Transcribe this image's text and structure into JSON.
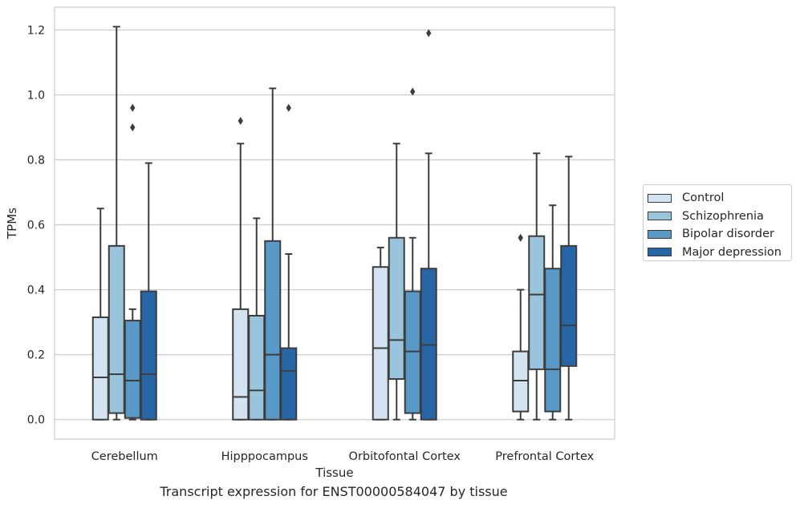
{
  "caption": "Transcript expression for ENST00000584047 by tissue",
  "chart_data": {
    "type": "boxplot",
    "xlabel": "Tissue",
    "ylabel": "TPMs",
    "ylim": [
      -0.06,
      1.27
    ],
    "yticks": [
      0.0,
      0.2,
      0.4,
      0.6,
      0.8,
      1.0,
      1.2
    ],
    "ytick_labels": [
      "0.0",
      "0.2",
      "0.4",
      "0.6",
      "0.8",
      "1.0",
      "1.2"
    ],
    "grid": true,
    "legend_position": "right",
    "categories": [
      "Cerebellum",
      "Hipppocampus",
      "Orbitofontal Cortex",
      "Prefrontal Cortex"
    ],
    "series": [
      {
        "name": "Control",
        "color": "#d3e3f1",
        "boxes": [
          {
            "whislo": 0.0,
            "q1": 0.0,
            "med": 0.13,
            "q3": 0.315,
            "whishi": 0.65,
            "fliers": []
          },
          {
            "whislo": 0.0,
            "q1": 0.0,
            "med": 0.07,
            "q3": 0.34,
            "whishi": 0.85,
            "fliers": [
              0.92
            ]
          },
          {
            "whislo": 0.0,
            "q1": 0.0,
            "med": 0.22,
            "q3": 0.47,
            "whishi": 0.53,
            "fliers": []
          },
          {
            "whislo": 0.0,
            "q1": 0.025,
            "med": 0.12,
            "q3": 0.21,
            "whishi": 0.4,
            "fliers": [
              0.56
            ]
          }
        ]
      },
      {
        "name": "Schizophrenia",
        "color": "#9ac3dc",
        "boxes": [
          {
            "whislo": 0.0,
            "q1": 0.02,
            "med": 0.14,
            "q3": 0.535,
            "whishi": 1.21,
            "fliers": []
          },
          {
            "whislo": 0.0,
            "q1": 0.0,
            "med": 0.09,
            "q3": 0.32,
            "whishi": 0.62,
            "fliers": []
          },
          {
            "whislo": 0.0,
            "q1": 0.125,
            "med": 0.245,
            "q3": 0.56,
            "whishi": 0.85,
            "fliers": []
          },
          {
            "whislo": 0.0,
            "q1": 0.155,
            "med": 0.385,
            "q3": 0.565,
            "whishi": 0.82,
            "fliers": []
          }
        ]
      },
      {
        "name": "Bipolar disorder",
        "color": "#5899c7",
        "boxes": [
          {
            "whislo": 0.0,
            "q1": 0.005,
            "med": 0.12,
            "q3": 0.305,
            "whishi": 0.34,
            "fliers": [
              0.9,
              0.96
            ]
          },
          {
            "whislo": 0.0,
            "q1": 0.0,
            "med": 0.2,
            "q3": 0.55,
            "whishi": 1.02,
            "fliers": []
          },
          {
            "whislo": 0.0,
            "q1": 0.02,
            "med": 0.21,
            "q3": 0.395,
            "whishi": 0.56,
            "fliers": [
              1.01
            ]
          },
          {
            "whislo": 0.0,
            "q1": 0.025,
            "med": 0.155,
            "q3": 0.465,
            "whishi": 0.66,
            "fliers": []
          }
        ]
      },
      {
        "name": "Major depression",
        "color": "#2666a7",
        "boxes": [
          {
            "whislo": 0.0,
            "q1": 0.0,
            "med": 0.14,
            "q3": 0.395,
            "whishi": 0.79,
            "fliers": []
          },
          {
            "whislo": 0.0,
            "q1": 0.0,
            "med": 0.15,
            "q3": 0.22,
            "whishi": 0.51,
            "fliers": [
              0.96
            ]
          },
          {
            "whislo": 0.0,
            "q1": 0.0,
            "med": 0.23,
            "q3": 0.465,
            "whishi": 0.82,
            "fliers": [
              1.19
            ]
          },
          {
            "whislo": 0.0,
            "q1": 0.165,
            "med": 0.29,
            "q3": 0.535,
            "whishi": 0.81,
            "fliers": []
          }
        ]
      }
    ]
  }
}
